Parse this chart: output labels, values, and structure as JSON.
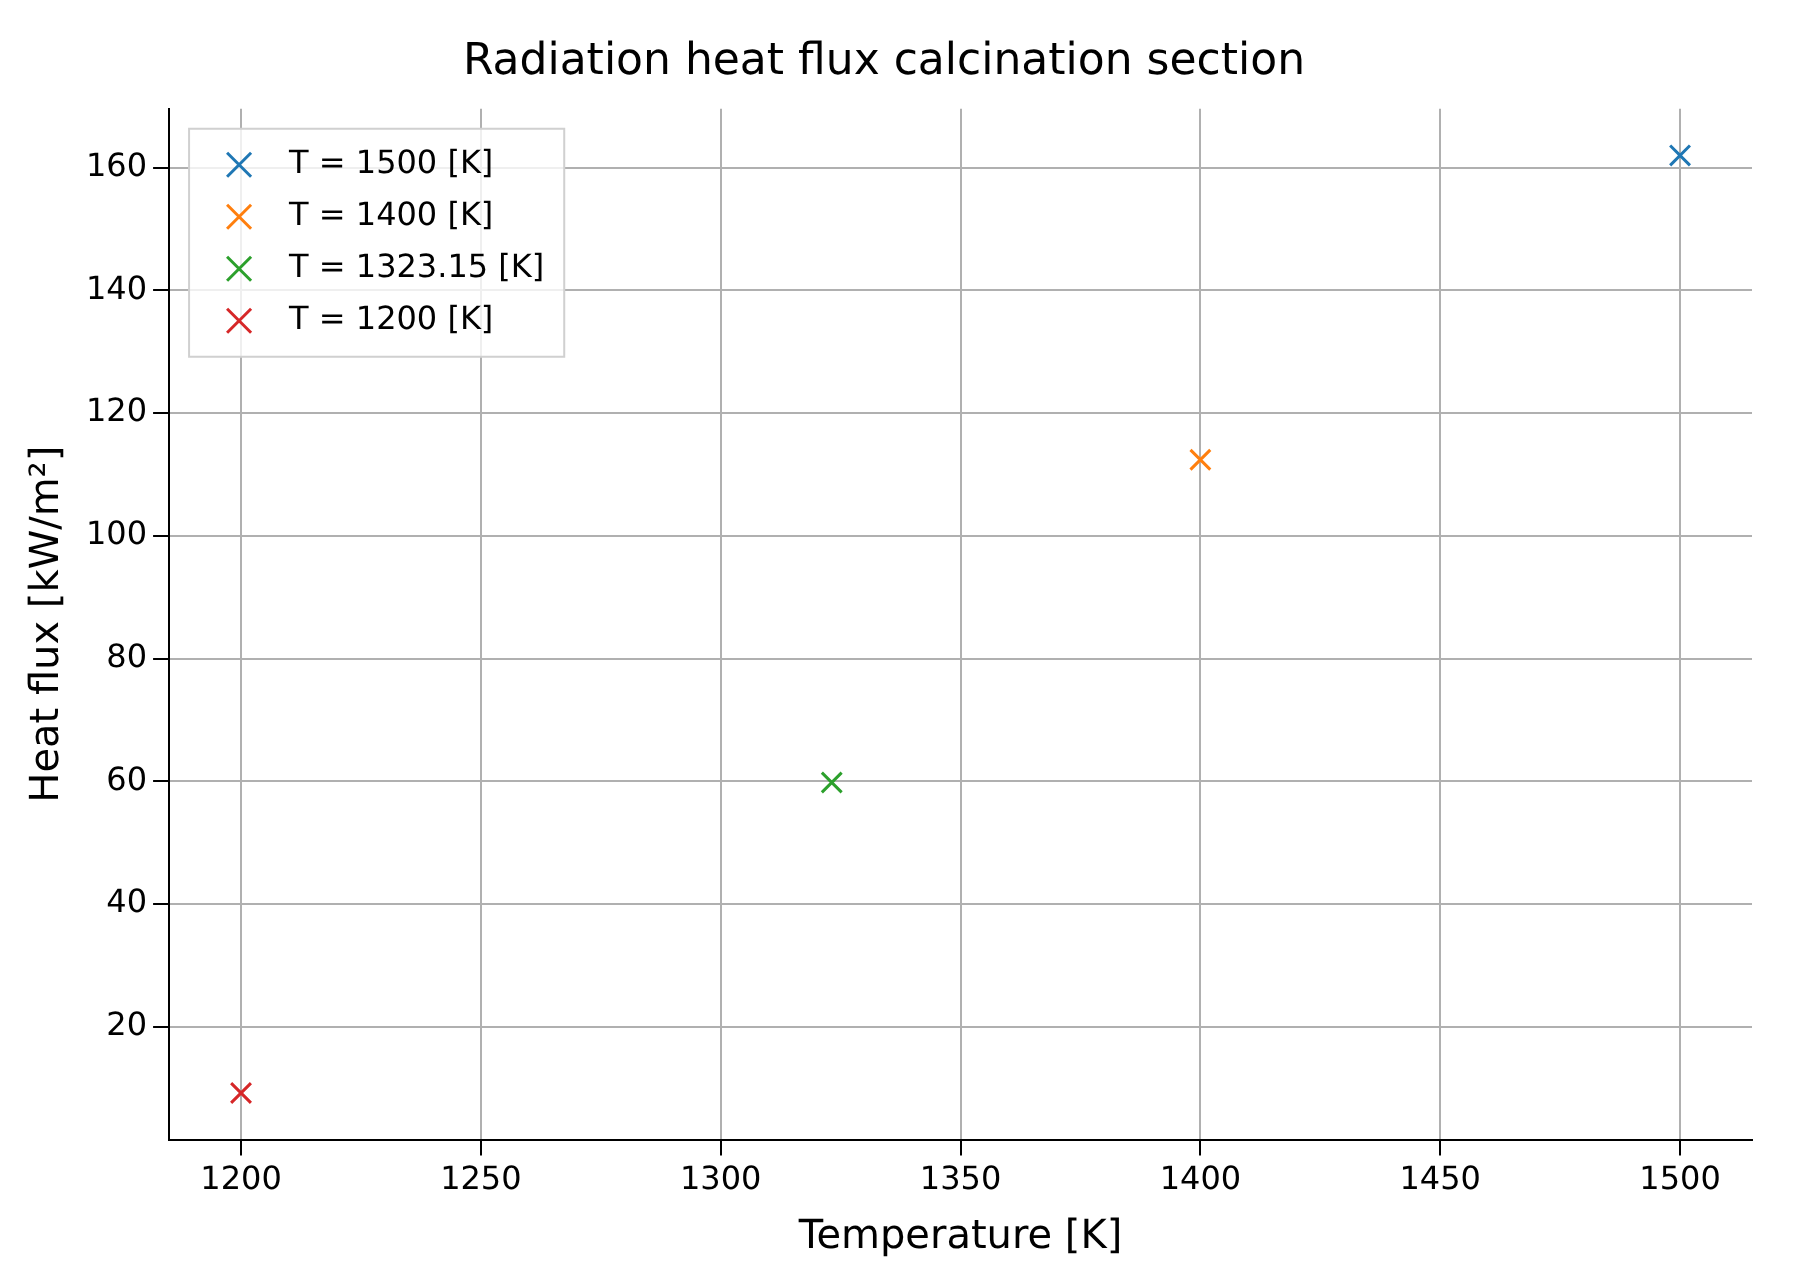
{
  "chart_data": {
    "type": "scatter",
    "title": "Radiation heat flux calcination section",
    "xlabel": "Temperature [K]",
    "ylabel": "Heat flux [kW/m²]",
    "series": [
      {
        "name": "T = 1500 [K]",
        "color": "#1f77b4",
        "x": [
          1500
        ],
        "values": [
          162
        ]
      },
      {
        "name": "T = 1400 [K]",
        "color": "#ff7f0e",
        "x": [
          1400
        ],
        "values": [
          112.4
        ]
      },
      {
        "name": "T = 1323.15 [K]",
        "color": "#2ca02c",
        "x": [
          1323.15
        ],
        "values": [
          59.8
        ]
      },
      {
        "name": "T = 1200 [K]",
        "color": "#d62728",
        "x": [
          1200
        ],
        "values": [
          9.2
        ]
      }
    ],
    "xlim": [
      1185,
      1515
    ],
    "xticks": [
      1200,
      1250,
      1300,
      1350,
      1400,
      1450,
      1500
    ],
    "ylim": [
      1.6,
      169.6
    ],
    "yticks": [
      20,
      40,
      60,
      80,
      100,
      120,
      140,
      160
    ],
    "grid": true,
    "legend": "top left",
    "marker": "cross"
  }
}
